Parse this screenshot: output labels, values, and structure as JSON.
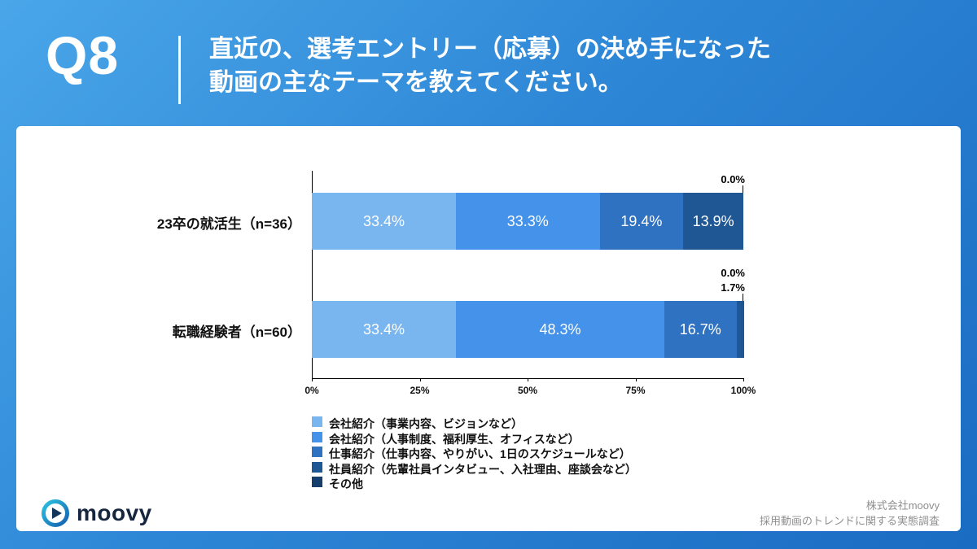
{
  "header": {
    "question_number": "Q8",
    "title_lines": [
      "直近の、選考エントリー（応募）の決め手になった",
      "動画の主なテーマを教えてください。"
    ]
  },
  "chart_data": {
    "type": "bar",
    "stacked": true,
    "orientation": "horizontal",
    "title": "",
    "xlabel": "",
    "ylabel": "",
    "xlim": [
      0,
      100
    ],
    "x_ticks": [
      "0%",
      "25%",
      "50%",
      "75%",
      "100%"
    ],
    "legend_position": "bottom-left",
    "categories": [
      "23卒の就活生（n=36）",
      "転職経験者（n=60）"
    ],
    "series": [
      {
        "name": "会社紹介（事業内容、ビジョンなど）",
        "color": "#79b6f0",
        "values": [
          33.4,
          33.4
        ]
      },
      {
        "name": "会社紹介（人事制度、福利厚生、オフィスなど）",
        "color": "#4492ea",
        "values": [
          33.3,
          48.3
        ]
      },
      {
        "name": "仕事紹介（仕事内容、やりがい、1日のスケジュールなど）",
        "color": "#2f72c2",
        "values": [
          19.4,
          16.7
        ]
      },
      {
        "name": "社員紹介（先輩社員インタビュー、入社理由、座談会など）",
        "color": "#1f5694",
        "values": [
          13.9,
          1.7
        ]
      },
      {
        "name": "その他",
        "color": "#153e6d",
        "values": [
          0.0,
          0.0
        ]
      }
    ]
  },
  "footer": {
    "logo_text": "moovy",
    "company": "株式会社moovy",
    "survey": "採用動画のトレンドに関する実態調査"
  }
}
